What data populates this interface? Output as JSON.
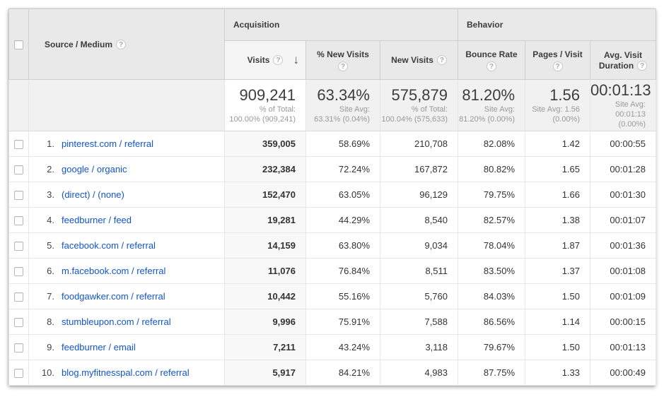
{
  "icons": {
    "help_glyph": "?",
    "sort_desc_glyph": "↓"
  },
  "groups": {
    "acquisition": "Acquisition",
    "behavior": "Behavior"
  },
  "columns": {
    "source_medium": "Source / Medium",
    "visits": "Visits",
    "pct_new_visits": "% New Visits",
    "new_visits": "New Visits",
    "bounce_rate": "Bounce Rate",
    "pages_visit": "Pages / Visit",
    "avg_visit_duration_line1": "Avg. Visit",
    "avg_visit_duration_line2": "Duration"
  },
  "summary": {
    "visits": {
      "value": "909,241",
      "sub1": "% of Total:",
      "sub2": "100.00% (909,241)"
    },
    "pct_new": {
      "value": "63.34%",
      "sub1": "Site Avg:",
      "sub2": "63.31% (0.04%)"
    },
    "new_visits": {
      "value": "575,879",
      "sub1": "% of Total:",
      "sub2": "100.04% (575,633)"
    },
    "bounce": {
      "value": "81.20%",
      "sub1": "Site Avg:",
      "sub2": "81.20% (0.00%)"
    },
    "pages": {
      "value": "1.56",
      "sub1": "Site Avg: 1.56",
      "sub2": "(0.00%)"
    },
    "duration": {
      "value": "00:01:13",
      "sub1": "Site Avg:",
      "sub2": "00:01:13 (0.00%)"
    }
  },
  "rows": [
    {
      "num": "1.",
      "source": "pinterest.com / referral",
      "visits": "359,005",
      "pct_new": "58.69%",
      "new_visits": "210,708",
      "bounce": "82.08%",
      "pages": "1.42",
      "duration": "00:00:55"
    },
    {
      "num": "2.",
      "source": "google / organic",
      "visits": "232,384",
      "pct_new": "72.24%",
      "new_visits": "167,872",
      "bounce": "80.82%",
      "pages": "1.65",
      "duration": "00:01:28"
    },
    {
      "num": "3.",
      "source": "(direct) / (none)",
      "visits": "152,470",
      "pct_new": "63.05%",
      "new_visits": "96,129",
      "bounce": "79.75%",
      "pages": "1.66",
      "duration": "00:01:30"
    },
    {
      "num": "4.",
      "source": "feedburner / feed",
      "visits": "19,281",
      "pct_new": "44.29%",
      "new_visits": "8,540",
      "bounce": "82.57%",
      "pages": "1.38",
      "duration": "00:01:07"
    },
    {
      "num": "5.",
      "source": "facebook.com / referral",
      "visits": "14,159",
      "pct_new": "63.80%",
      "new_visits": "9,034",
      "bounce": "78.04%",
      "pages": "1.87",
      "duration": "00:01:36"
    },
    {
      "num": "6.",
      "source": "m.facebook.com / referral",
      "visits": "11,076",
      "pct_new": "76.84%",
      "new_visits": "8,511",
      "bounce": "83.50%",
      "pages": "1.37",
      "duration": "00:01:08"
    },
    {
      "num": "7.",
      "source": "foodgawker.com / referral",
      "visits": "10,442",
      "pct_new": "55.16%",
      "new_visits": "5,760",
      "bounce": "84.03%",
      "pages": "1.50",
      "duration": "00:01:09"
    },
    {
      "num": "8.",
      "source": "stumbleupon.com / referral",
      "visits": "9,996",
      "pct_new": "75.91%",
      "new_visits": "7,588",
      "bounce": "86.56%",
      "pages": "1.14",
      "duration": "00:00:15"
    },
    {
      "num": "9.",
      "source": "feedburner / email",
      "visits": "7,211",
      "pct_new": "43.24%",
      "new_visits": "3,118",
      "bounce": "79.67%",
      "pages": "1.50",
      "duration": "00:01:13"
    },
    {
      "num": "10.",
      "source": "blog.myfitnesspal.com / referral",
      "visits": "5,917",
      "pct_new": "84.21%",
      "new_visits": "4,983",
      "bounce": "87.75%",
      "pages": "1.33",
      "duration": "00:00:49"
    }
  ],
  "colors": {
    "header_bg": "#e9e9e9",
    "sorted_header_bg": "#f5f5f5",
    "summary_bg": "#f1f1f1",
    "sorted_cell_bg": "#f8f8f8",
    "link_blue": "#1155cc",
    "text": "#333333",
    "sub_text": "#999999"
  }
}
